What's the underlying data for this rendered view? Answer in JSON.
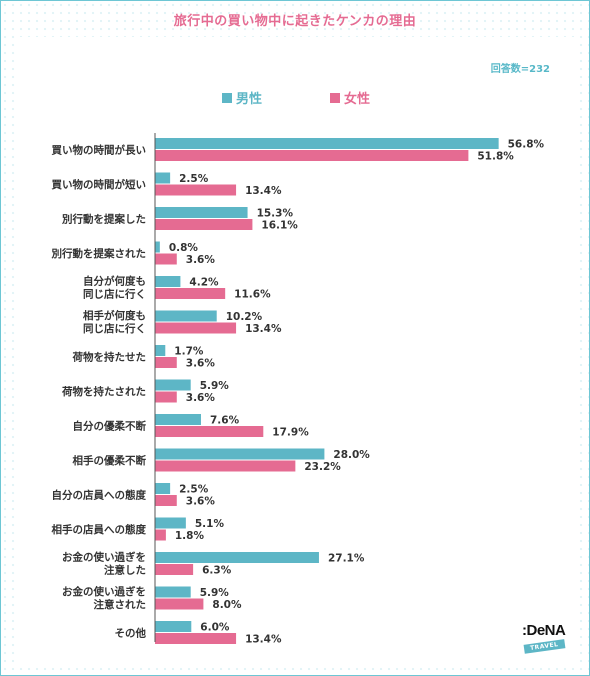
{
  "chart_data": {
    "type": "bar",
    "orientation": "horizontal",
    "title": "旅行中の買い物中に起きたケンカの理由",
    "note": "回答数=232",
    "categories": [
      [
        "買い物の時間が長い"
      ],
      [
        "買い物の時間が短い"
      ],
      [
        "別行動を提案した"
      ],
      [
        "別行動を提案された"
      ],
      [
        "自分が何度も",
        "同じ店に行く"
      ],
      [
        "相手が何度も",
        "同じ店に行く"
      ],
      [
        "荷物を持たせた"
      ],
      [
        "荷物を持たされた"
      ],
      [
        "自分の優柔不断"
      ],
      [
        "相手の優柔不断"
      ],
      [
        "自分の店員への態度"
      ],
      [
        "相手の店員への態度"
      ],
      [
        "お金の使い過ぎを",
        "注意した"
      ],
      [
        "お金の使い過ぎを",
        "注意された"
      ],
      [
        "その他"
      ]
    ],
    "series": [
      {
        "name": "男性",
        "color": "#5db6c6",
        "values": [
          56.8,
          2.5,
          15.3,
          0.8,
          4.2,
          10.2,
          1.7,
          5.9,
          7.6,
          28.0,
          2.5,
          5.1,
          27.1,
          5.9,
          6.0
        ],
        "labels": [
          "56.8%",
          "2.5%",
          "15.3%",
          "0.8%",
          "4.2%",
          "10.2%",
          "1.7%",
          "5.9%",
          "7.6%",
          "28.0%",
          "2.5%",
          "5.1%",
          "27.1%",
          "5.9%",
          "6.0%"
        ]
      },
      {
        "name": "女性",
        "color": "#e56b92",
        "values": [
          51.8,
          13.4,
          16.1,
          3.6,
          11.6,
          13.4,
          3.6,
          3.6,
          17.9,
          23.2,
          3.6,
          1.8,
          6.3,
          8.0,
          13.4
        ],
        "labels": [
          "51.8%",
          "13.4%",
          "16.1%",
          "3.6%",
          "11.6%",
          "13.4%",
          "3.6%",
          "3.6%",
          "17.9%",
          "23.2%",
          "3.6%",
          "1.8%",
          "6.3%",
          "8.0%",
          "13.4%"
        ]
      }
    ],
    "xlim": [
      0,
      60
    ],
    "legend": "top",
    "grid": false
  },
  "brand": {
    "logo": ":DeNA",
    "tag": "TRAVEL"
  }
}
